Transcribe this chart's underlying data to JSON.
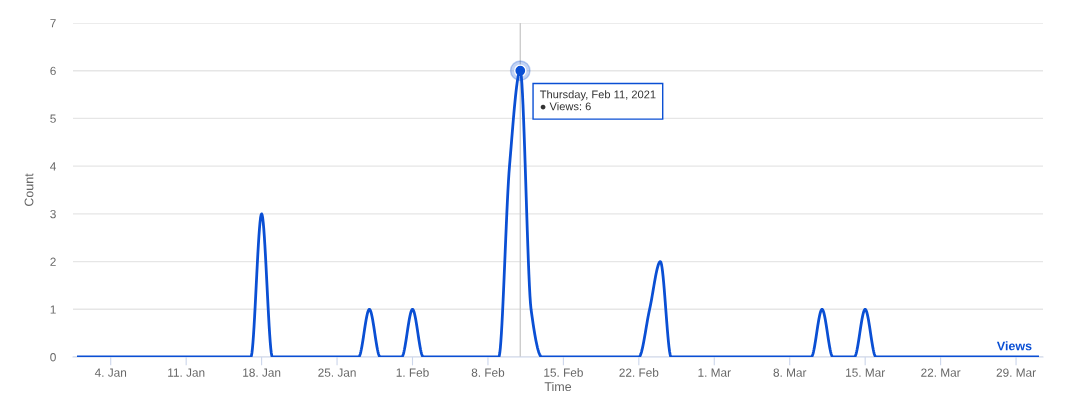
{
  "chart_data": {
    "type": "line",
    "xlabel": "Time",
    "ylabel": "Count",
    "x": [
      "2021-01-01",
      "2021-01-17",
      "2021-01-18",
      "2021-01-19",
      "2021-01-27",
      "2021-01-28",
      "2021-01-29",
      "2021-01-31",
      "2021-02-01",
      "2021-02-02",
      "2021-02-09",
      "2021-02-10",
      "2021-02-11",
      "2021-02-12",
      "2021-02-13",
      "2021-02-22",
      "2021-02-23",
      "2021-02-24",
      "2021-02-25",
      "2021-03-10",
      "2021-03-11",
      "2021-03-12",
      "2021-03-14",
      "2021-03-15",
      "2021-03-16",
      "2021-03-31"
    ],
    "series": [
      {
        "name": "Views",
        "color": "#0a4fd4",
        "values": [
          0,
          0,
          3,
          0,
          0,
          1,
          0,
          0,
          1,
          0,
          0,
          4,
          6,
          1,
          0,
          0,
          1,
          2,
          0,
          0,
          1,
          0,
          0,
          1,
          0,
          0
        ]
      }
    ],
    "xlim": [
      "2020-12-31T12:00",
      "2021-03-31T12:00"
    ],
    "xticks": [
      {
        "value": "2021-01-04",
        "label": "4. Jan"
      },
      {
        "value": "2021-01-11",
        "label": "11. Jan"
      },
      {
        "value": "2021-01-18",
        "label": "18. Jan"
      },
      {
        "value": "2021-01-25",
        "label": "25. Jan"
      },
      {
        "value": "2021-02-01",
        "label": "1. Feb"
      },
      {
        "value": "2021-02-08",
        "label": "8. Feb"
      },
      {
        "value": "2021-02-15",
        "label": "15. Feb"
      },
      {
        "value": "2021-02-22",
        "label": "22. Feb"
      },
      {
        "value": "2021-03-01",
        "label": "1. Mar"
      },
      {
        "value": "2021-03-08",
        "label": "8. Mar"
      },
      {
        "value": "2021-03-15",
        "label": "15. Mar"
      },
      {
        "value": "2021-03-22",
        "label": "22. Mar"
      },
      {
        "value": "2021-03-29",
        "label": "29. Mar"
      }
    ],
    "ylim": [
      0,
      7
    ],
    "yticks": [
      0,
      1,
      2,
      3,
      4,
      5,
      6,
      7
    ],
    "grid": "y",
    "marker": "none",
    "line_style": "solid",
    "legend": false,
    "ref_lines": [
      {
        "axis": "x",
        "value": "2021-02-11",
        "color": "#cccccc"
      }
    ],
    "annotations": [
      {
        "text": "Thursday, Feb 11, 2021\n● Views: 6",
        "x": "2021-02-11",
        "y": 6
      }
    ]
  }
}
